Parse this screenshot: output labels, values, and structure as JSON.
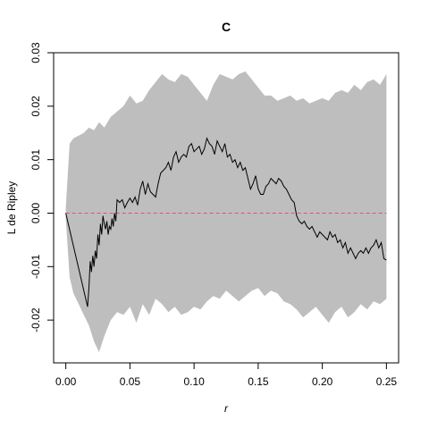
{
  "chart_data": {
    "type": "line",
    "title": "C",
    "xlabel": "r",
    "ylabel": "L de Ripley",
    "xlim": [
      -0.0095,
      0.2595
    ],
    "ylim": [
      -0.028,
      0.03
    ],
    "x_ticks": [
      0.0,
      0.05,
      0.1,
      0.15,
      0.2,
      0.25
    ],
    "x_tick_labels": [
      "0.00",
      "0.05",
      "0.10",
      "0.15",
      "0.20",
      "0.25"
    ],
    "y_ticks": [
      -0.02,
      -0.01,
      0.0,
      0.01,
      0.02,
      0.03
    ],
    "y_tick_labels": [
      "-0.02",
      "-0.01",
      "0.00",
      "0.01",
      "0.02",
      "0.03"
    ],
    "grid": false,
    "colors": {
      "envelope": "#bebebe",
      "observed": "#000000",
      "reference": "#df536b"
    },
    "envelope": {
      "x": [
        0.0,
        0.003,
        0.006,
        0.01,
        0.014,
        0.018,
        0.022,
        0.026,
        0.03,
        0.035,
        0.04,
        0.045,
        0.05,
        0.055,
        0.06,
        0.065,
        0.07,
        0.075,
        0.08,
        0.085,
        0.09,
        0.095,
        0.1,
        0.105,
        0.11,
        0.115,
        0.12,
        0.125,
        0.13,
        0.135,
        0.14,
        0.145,
        0.15,
        0.155,
        0.16,
        0.165,
        0.17,
        0.175,
        0.18,
        0.185,
        0.19,
        0.195,
        0.2,
        0.205,
        0.21,
        0.215,
        0.22,
        0.225,
        0.23,
        0.235,
        0.24,
        0.245,
        0.25
      ],
      "upper": [
        0.001,
        0.013,
        0.014,
        0.0145,
        0.015,
        0.016,
        0.0155,
        0.017,
        0.016,
        0.018,
        0.019,
        0.02,
        0.022,
        0.0205,
        0.021,
        0.023,
        0.0245,
        0.026,
        0.025,
        0.0245,
        0.026,
        0.0255,
        0.024,
        0.0225,
        0.021,
        0.024,
        0.026,
        0.0255,
        0.025,
        0.026,
        0.0265,
        0.025,
        0.0235,
        0.022,
        0.022,
        0.021,
        0.0215,
        0.022,
        0.021,
        0.0215,
        0.0205,
        0.021,
        0.0215,
        0.021,
        0.0225,
        0.023,
        0.0225,
        0.024,
        0.023,
        0.0245,
        0.025,
        0.024,
        0.026
      ],
      "lower": [
        -0.001,
        -0.012,
        -0.015,
        -0.017,
        -0.019,
        -0.021,
        -0.024,
        -0.026,
        -0.023,
        -0.02,
        -0.0185,
        -0.019,
        -0.0175,
        -0.0205,
        -0.017,
        -0.019,
        -0.016,
        -0.017,
        -0.0185,
        -0.0175,
        -0.019,
        -0.0185,
        -0.0175,
        -0.018,
        -0.0165,
        -0.0155,
        -0.016,
        -0.0145,
        -0.0155,
        -0.0165,
        -0.0155,
        -0.0145,
        -0.014,
        -0.0155,
        -0.0145,
        -0.015,
        -0.0165,
        -0.017,
        -0.018,
        -0.0195,
        -0.0185,
        -0.0175,
        -0.019,
        -0.0205,
        -0.0185,
        -0.0175,
        -0.0195,
        -0.0185,
        -0.017,
        -0.018,
        -0.0165,
        -0.017,
        -0.016
      ]
    },
    "observed": {
      "x": [
        0.0,
        0.017,
        0.018,
        0.019,
        0.02,
        0.021,
        0.022,
        0.023,
        0.024,
        0.025,
        0.026,
        0.027,
        0.028,
        0.029,
        0.03,
        0.031,
        0.032,
        0.033,
        0.034,
        0.035,
        0.036,
        0.037,
        0.038,
        0.039,
        0.04,
        0.042,
        0.044,
        0.046,
        0.048,
        0.05,
        0.052,
        0.054,
        0.056,
        0.058,
        0.06,
        0.062,
        0.064,
        0.066,
        0.068,
        0.07,
        0.072,
        0.074,
        0.076,
        0.078,
        0.08,
        0.082,
        0.084,
        0.086,
        0.088,
        0.09,
        0.092,
        0.094,
        0.096,
        0.098,
        0.1,
        0.102,
        0.104,
        0.106,
        0.108,
        0.11,
        0.112,
        0.114,
        0.116,
        0.118,
        0.12,
        0.122,
        0.124,
        0.126,
        0.128,
        0.13,
        0.132,
        0.134,
        0.136,
        0.138,
        0.14,
        0.142,
        0.144,
        0.146,
        0.148,
        0.15,
        0.152,
        0.154,
        0.156,
        0.158,
        0.16,
        0.162,
        0.164,
        0.166,
        0.168,
        0.17,
        0.172,
        0.174,
        0.176,
        0.178,
        0.18,
        0.182,
        0.184,
        0.186,
        0.188,
        0.19,
        0.192,
        0.194,
        0.196,
        0.198,
        0.2,
        0.202,
        0.204,
        0.206,
        0.208,
        0.21,
        0.212,
        0.214,
        0.216,
        0.218,
        0.22,
        0.222,
        0.224,
        0.226,
        0.228,
        0.23,
        0.232,
        0.234,
        0.236,
        0.238,
        0.24,
        0.242,
        0.244,
        0.246,
        0.248,
        0.25
      ],
      "y": [
        0.0,
        -0.0175,
        -0.014,
        -0.009,
        -0.011,
        -0.008,
        -0.01,
        -0.007,
        -0.0085,
        -0.004,
        -0.006,
        -0.002,
        -0.004,
        -0.0005,
        -0.002,
        -0.003,
        -0.0015,
        -0.004,
        -0.0025,
        -0.003,
        -0.001,
        -0.0025,
        0.0,
        -0.0015,
        0.0025,
        0.002,
        0.0025,
        0.001,
        0.002,
        0.0028,
        0.002,
        0.003,
        0.0015,
        0.0045,
        0.006,
        0.0035,
        0.0055,
        0.004,
        0.0035,
        0.003,
        0.0055,
        0.0075,
        0.008,
        0.0085,
        0.0095,
        0.008,
        0.0105,
        0.0115,
        0.0095,
        0.0105,
        0.011,
        0.0105,
        0.0125,
        0.013,
        0.0115,
        0.012,
        0.0125,
        0.011,
        0.012,
        0.014,
        0.013,
        0.0125,
        0.011,
        0.0135,
        0.0125,
        0.0115,
        0.013,
        0.0105,
        0.011,
        0.0095,
        0.01,
        0.0085,
        0.0095,
        0.008,
        0.0085,
        0.0065,
        0.0045,
        0.0055,
        0.007,
        0.0045,
        0.0035,
        0.0035,
        0.005,
        0.0055,
        0.0065,
        0.006,
        0.0055,
        0.0065,
        0.006,
        0.005,
        0.0045,
        0.0035,
        0.0025,
        0.002,
        -0.0005,
        -0.0015,
        -0.002,
        -0.0015,
        -0.0025,
        -0.003,
        -0.0025,
        -0.0035,
        -0.0045,
        -0.0035,
        -0.004,
        -0.0045,
        -0.005,
        -0.0035,
        -0.0045,
        -0.004,
        -0.0055,
        -0.005,
        -0.0065,
        -0.0055,
        -0.0075,
        -0.0065,
        -0.0075,
        -0.0085,
        -0.0075,
        -0.007,
        -0.0075,
        -0.0065,
        -0.0075,
        -0.0065,
        -0.006,
        -0.005,
        -0.0065,
        -0.0055,
        -0.0085,
        -0.0088
      ]
    },
    "reference": {
      "y": 0.0,
      "style": "dashed"
    }
  }
}
